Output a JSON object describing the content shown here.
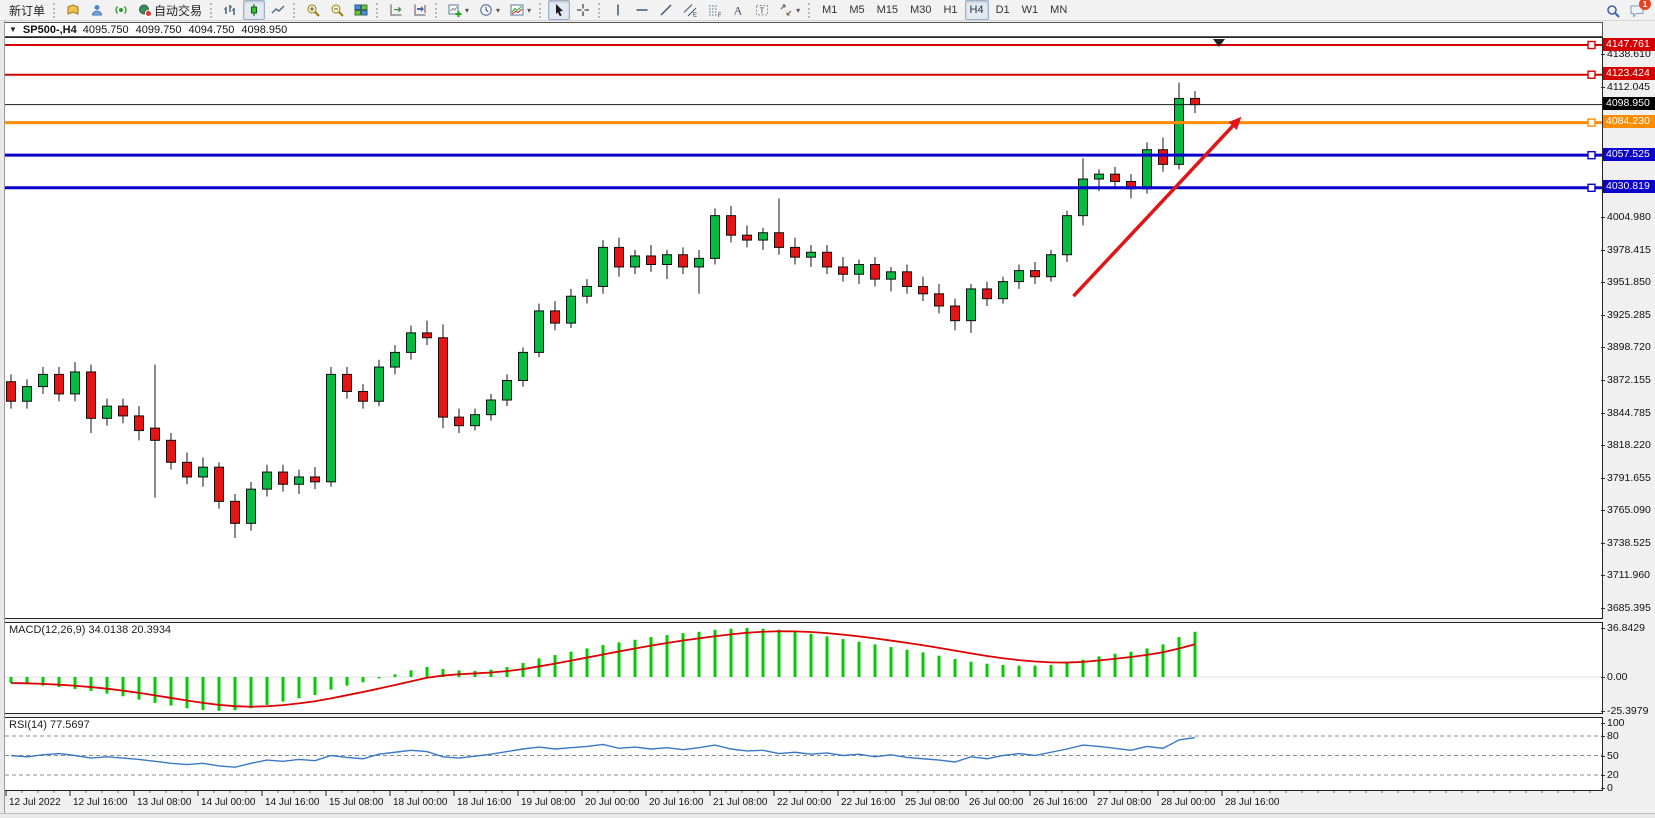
{
  "toolbar": {
    "new_order": "新订单",
    "auto_trading": "自动交易",
    "chat_badge": "1",
    "items": [
      {
        "name": "new-order-button",
        "label": "新订单"
      },
      {
        "sep": true
      },
      {
        "name": "history-icon",
        "icon": "book"
      },
      {
        "name": "accounts-icon",
        "icon": "person"
      },
      {
        "name": "signals-icon",
        "icon": "signal"
      },
      {
        "name": "auto-trading-button",
        "icon": "autotrade",
        "label": "自动交易"
      },
      {
        "sep": true
      },
      {
        "name": "bar-chart-mode-button",
        "icon": "bars"
      },
      {
        "name": "candlestick-mode-button",
        "icon": "candle",
        "active": true
      },
      {
        "name": "line-chart-mode-button",
        "icon": "linechart"
      },
      {
        "sep": true
      },
      {
        "name": "zoom-in-button",
        "icon": "zoomin"
      },
      {
        "name": "zoom-out-button",
        "icon": "zoomout"
      },
      {
        "name": "tile-windows-button",
        "icon": "tile"
      },
      {
        "sep": true
      },
      {
        "name": "auto-scroll-button",
        "icon": "autoscroll"
      },
      {
        "name": "chart-shift-button",
        "icon": "chartshift"
      },
      {
        "sep": true
      },
      {
        "name": "new-chart-dropdown",
        "icon": "newchart",
        "dropdown": true
      },
      {
        "name": "profiles-dropdown",
        "icon": "clock",
        "dropdown": true
      },
      {
        "name": "indicators-dropdown",
        "icon": "indicators",
        "dropdown": true
      },
      {
        "sep": true
      },
      {
        "name": "cursor-button",
        "icon": "cursor",
        "active": true
      },
      {
        "name": "crosshair-button",
        "icon": "crosshair"
      },
      {
        "sep": true
      },
      {
        "name": "vertical-line-button",
        "icon": "vline"
      },
      {
        "name": "horizontal-line-button",
        "icon": "hline"
      },
      {
        "name": "trendline-button",
        "icon": "trend"
      },
      {
        "name": "equidistant-channel-button",
        "icon": "channel"
      },
      {
        "name": "fibonacci-button",
        "icon": "fibo"
      },
      {
        "name": "text-button",
        "icon": "textA"
      },
      {
        "name": "label-button",
        "icon": "textT"
      },
      {
        "name": "shapes-dropdown",
        "icon": "shapes",
        "dropdown": true
      },
      {
        "sep": true
      }
    ],
    "timeframes": [
      "M1",
      "M5",
      "M15",
      "M30",
      "H1",
      "H4",
      "D1",
      "W1",
      "MN"
    ],
    "active_timeframe": "H4"
  },
  "chart_window": {
    "collapse_arrow": "▼",
    "symbol": "SP500-,H4",
    "open": "4095.750",
    "high": "4099.750",
    "low": "4094.750",
    "close": "4098.950"
  },
  "price_scale": {
    "ticks": [
      "4138.610",
      "4112.045",
      "4004.980",
      "3978.415",
      "3951.850",
      "3925.285",
      "3898.720",
      "3872.155",
      "3844.785",
      "3818.220",
      "3791.655",
      "3765.090",
      "3738.525",
      "3711.960",
      "3685.395"
    ],
    "level_lines": [
      {
        "label": "4147.761",
        "price": 4147.761,
        "color": "#d40000",
        "thickness": 2
      },
      {
        "label": "4123.424",
        "price": 4123.424,
        "color": "#d40000",
        "thickness": 2
      },
      {
        "label": "4084.230",
        "price": 4084.23,
        "color": "#ff8c00",
        "thickness": 3
      },
      {
        "label": "4057.525",
        "price": 4057.525,
        "color": "#0b00cc",
        "thickness": 3
      },
      {
        "label": "4030.819",
        "price": 4030.819,
        "color": "#0b00cc",
        "thickness": 3
      }
    ],
    "current_price": {
      "label": "4098.950",
      "price": 4098.95,
      "badge_color": "#000000"
    }
  },
  "chart_data": {
    "type": "candlestick",
    "symbol": "SP500-",
    "timeframe": "H4",
    "x_labels": [
      "12 Jul 2022",
      "12 Jul 16:00",
      "13 Jul 08:00",
      "14 Jul 00:00",
      "14 Jul 16:00",
      "15 Jul 08:00",
      "18 Jul 00:00",
      "18 Jul 16:00",
      "19 Jul 08:00",
      "20 Jul 00:00",
      "20 Jul 16:00",
      "21 Jul 08:00",
      "22 Jul 00:00",
      "22 Jul 16:00",
      "25 Jul 08:00",
      "26 Jul 00:00",
      "26 Jul 16:00",
      "27 Jul 08:00",
      "28 Jul 00:00",
      "28 Jul 16:00"
    ],
    "y_range": [
      3680,
      4153.5
    ],
    "colors": {
      "bull": "#00bc42",
      "bear": "#e81212",
      "wick": "#141414",
      "arrow": "#e01616"
    },
    "candles_ohlc": [
      [
        3872,
        3878,
        3850,
        3856
      ],
      [
        3856,
        3874,
        3850,
        3868
      ],
      [
        3868,
        3884,
        3862,
        3878
      ],
      [
        3878,
        3884,
        3856,
        3862
      ],
      [
        3862,
        3888,
        3856,
        3880
      ],
      [
        3880,
        3886,
        3830,
        3842
      ],
      [
        3842,
        3858,
        3836,
        3852
      ],
      [
        3852,
        3858,
        3838,
        3844
      ],
      [
        3844,
        3852,
        3824,
        3832
      ],
      [
        3834,
        3886,
        3777,
        3824
      ],
      [
        3824,
        3830,
        3800,
        3806
      ],
      [
        3806,
        3814,
        3788,
        3794
      ],
      [
        3794,
        3810,
        3786,
        3802
      ],
      [
        3802,
        3806,
        3768,
        3774
      ],
      [
        3774,
        3780,
        3744,
        3756
      ],
      [
        3756,
        3790,
        3750,
        3784
      ],
      [
        3784,
        3804,
        3778,
        3798
      ],
      [
        3798,
        3804,
        3782,
        3788
      ],
      [
        3788,
        3800,
        3780,
        3794
      ],
      [
        3794,
        3802,
        3784,
        3790
      ],
      [
        3790,
        3884,
        3786,
        3878
      ],
      [
        3878,
        3884,
        3858,
        3864
      ],
      [
        3864,
        3870,
        3850,
        3856
      ],
      [
        3856,
        3890,
        3852,
        3884
      ],
      [
        3884,
        3902,
        3878,
        3896
      ],
      [
        3896,
        3918,
        3890,
        3912
      ],
      [
        3912,
        3922,
        3902,
        3908
      ],
      [
        3908,
        3919,
        3834,
        3843
      ],
      [
        3843,
        3850,
        3830,
        3836
      ],
      [
        3836,
        3850,
        3832,
        3845
      ],
      [
        3845,
        3862,
        3840,
        3857
      ],
      [
        3857,
        3878,
        3852,
        3873
      ],
      [
        3873,
        3900,
        3868,
        3896
      ],
      [
        3896,
        3936,
        3892,
        3930
      ],
      [
        3930,
        3938,
        3914,
        3920
      ],
      [
        3920,
        3948,
        3916,
        3942
      ],
      [
        3942,
        3956,
        3936,
        3950
      ],
      [
        3950,
        3988,
        3944,
        3982
      ],
      [
        3982,
        3990,
        3958,
        3966
      ],
      [
        3966,
        3980,
        3960,
        3975
      ],
      [
        3975,
        3984,
        3962,
        3968
      ],
      [
        3968,
        3980,
        3956,
        3976
      ],
      [
        3976,
        3982,
        3960,
        3966
      ],
      [
        3966,
        3980,
        3944,
        3973
      ],
      [
        3973,
        4014,
        3968,
        4008
      ],
      [
        4008,
        4016,
        3986,
        3992
      ],
      [
        3992,
        4000,
        3982,
        3988
      ],
      [
        3988,
        3998,
        3980,
        3994
      ],
      [
        3994,
        4022,
        3976,
        3982
      ],
      [
        3982,
        3990,
        3968,
        3974
      ],
      [
        3974,
        3984,
        3966,
        3978
      ],
      [
        3978,
        3984,
        3960,
        3966
      ],
      [
        3966,
        3974,
        3954,
        3960
      ],
      [
        3960,
        3972,
        3952,
        3968
      ],
      [
        3968,
        3974,
        3950,
        3956
      ],
      [
        3956,
        3966,
        3946,
        3962
      ],
      [
        3962,
        3968,
        3944,
        3950
      ],
      [
        3950,
        3958,
        3938,
        3944
      ],
      [
        3944,
        3952,
        3928,
        3934
      ],
      [
        3934,
        3940,
        3914,
        3922
      ],
      [
        3922,
        3952,
        3912,
        3948
      ],
      [
        3948,
        3954,
        3934,
        3940
      ],
      [
        3940,
        3958,
        3936,
        3954
      ],
      [
        3954,
        3968,
        3948,
        3963
      ],
      [
        3963,
        3970,
        3952,
        3958
      ],
      [
        3958,
        3980,
        3954,
        3976
      ],
      [
        3976,
        4012,
        3970,
        4008
      ],
      [
        4008,
        4055,
        4000,
        4038
      ],
      [
        4038,
        4046,
        4028,
        4042
      ],
      [
        4042,
        4048,
        4030,
        4036
      ],
      [
        4036,
        4042,
        4022,
        4030
      ],
      [
        4030,
        4068,
        4026,
        4062
      ],
      [
        4062,
        4072,
        4044,
        4050
      ],
      [
        4050,
        4117,
        4046,
        4104
      ],
      [
        4104,
        4110,
        4092,
        4098.95
      ]
    ],
    "trend_arrow": {
      "from_index": 66.4,
      "from_price": 3942,
      "to_index": 76.9,
      "to_price": 4089
    },
    "macd": {
      "label": "MACD(12,26,9) 34.0138 20.3934",
      "axis_ticks": [
        "36.8429",
        "0.00",
        "-25.3979"
      ],
      "histogram_color": "#00cc00",
      "signal_color": "#dd0000",
      "values": [
        -4.5,
        -5.5,
        -6.5,
        -7.5,
        -9,
        -10.5,
        -12.5,
        -14.5,
        -17,
        -19.5,
        -21.5,
        -23.5,
        -24.8,
        -25.4,
        -25,
        -23.5,
        -21,
        -18.5,
        -16,
        -13.5,
        -9.5,
        -6.5,
        -4,
        -1,
        2,
        5,
        7.5,
        6,
        5,
        4.5,
        5.5,
        7.5,
        10.5,
        14,
        16.5,
        19,
        21.5,
        24,
        26,
        28,
        30,
        31.5,
        33,
        34,
        35.5,
        36.3,
        36.8,
        36.3,
        35.5,
        34,
        32.5,
        30.5,
        28.5,
        26.5,
        24.5,
        22.5,
        20.5,
        18.5,
        16,
        13.5,
        11.5,
        10,
        9,
        8.5,
        8.5,
        9,
        10.5,
        13,
        15.5,
        17.5,
        19,
        21.5,
        24.5,
        30,
        34
      ]
    },
    "rsi": {
      "label": "RSI(14) 77.5697",
      "axis_ticks": [
        "100",
        "80",
        "50",
        "20",
        "0"
      ],
      "levels": [
        80,
        50,
        20
      ],
      "line_color": "#3a78c8",
      "values": [
        50,
        48,
        51,
        53,
        50,
        46,
        48,
        46,
        44,
        41,
        38,
        36,
        38,
        34,
        32,
        38,
        43,
        41,
        44,
        42,
        50,
        47,
        45,
        52,
        55,
        58,
        56,
        48,
        46,
        49,
        52,
        56,
        60,
        63,
        60,
        62,
        64,
        67,
        61,
        63,
        60,
        62,
        59,
        62,
        66,
        60,
        57,
        58,
        53,
        55,
        52,
        54,
        50,
        52,
        48,
        51,
        47,
        45,
        43,
        40,
        48,
        45,
        50,
        53,
        50,
        55,
        60,
        66,
        64,
        61,
        58,
        64,
        61,
        74,
        77.6
      ]
    }
  }
}
